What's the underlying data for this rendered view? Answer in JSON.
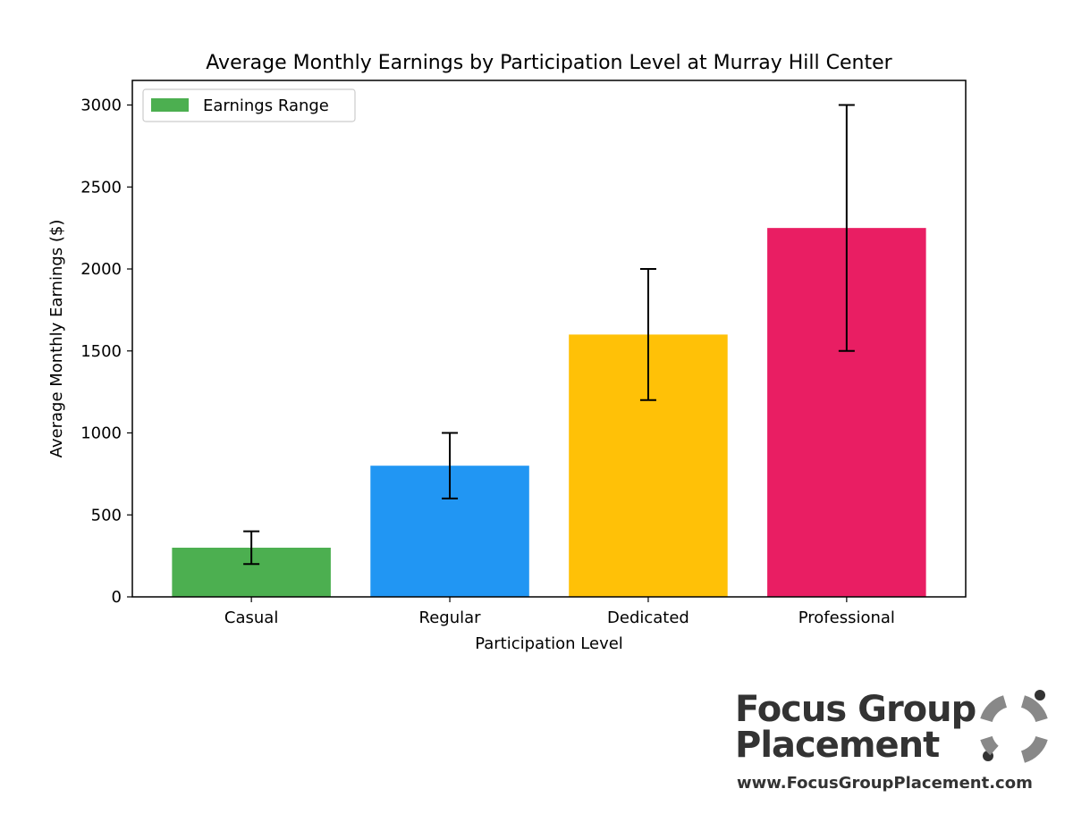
{
  "chart_data": {
    "type": "bar",
    "title": "Average Monthly Earnings by Participation Level at Murray Hill Center",
    "xlabel": "Participation Level",
    "ylabel": "Average Monthly Earnings ($)",
    "categories": [
      "Casual",
      "Regular",
      "Dedicated",
      "Professional"
    ],
    "values": [
      300,
      800,
      1600,
      2250
    ],
    "error_low": [
      200,
      600,
      1200,
      1500
    ],
    "error_high": [
      400,
      1000,
      2000,
      3000
    ],
    "colors": [
      "#4CAF50",
      "#2196F3",
      "#FFC107",
      "#E91E63"
    ],
    "ylim": [
      0,
      3150
    ],
    "yticks": [
      0,
      500,
      1000,
      1500,
      2000,
      2500,
      3000
    ],
    "grid": false,
    "legend": {
      "label": "Earnings Range",
      "color": "#4CAF50",
      "placement": "top-left"
    }
  },
  "logo": {
    "line1": "Focus Group",
    "line2": "Placement",
    "url": "www.FocusGroupPlacement.com",
    "icon": "focus-group-placement-ring-icon",
    "color": "#333333",
    "icon_color": "#888888"
  }
}
